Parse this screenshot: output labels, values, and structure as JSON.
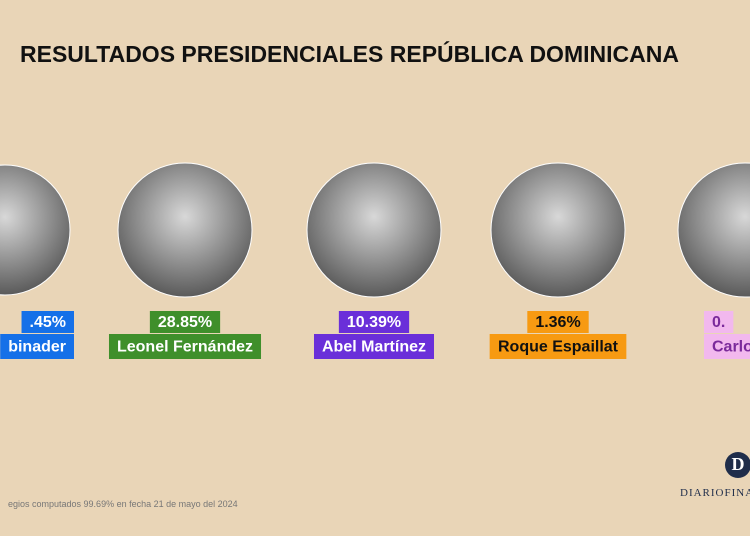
{
  "header": {
    "title": "RESULTADOS PRESIDENCIALES REPÚBLICA DOMINICANA"
  },
  "candidates": [
    {
      "percent": ".45%",
      "name": "binader"
    },
    {
      "percent": "28.85%",
      "name": "Leonel Fernández"
    },
    {
      "percent": "10.39%",
      "name": "Abel Martínez"
    },
    {
      "percent": "1.36%",
      "name": "Roque Espaillat"
    },
    {
      "percent": "0.",
      "name": "Carlo"
    }
  ],
  "footer": {
    "note": "egios computados 99.69% en fecha 21 de mayo del 2024",
    "logo_mark": "D",
    "logo_text": "DIARIOFINA"
  }
}
